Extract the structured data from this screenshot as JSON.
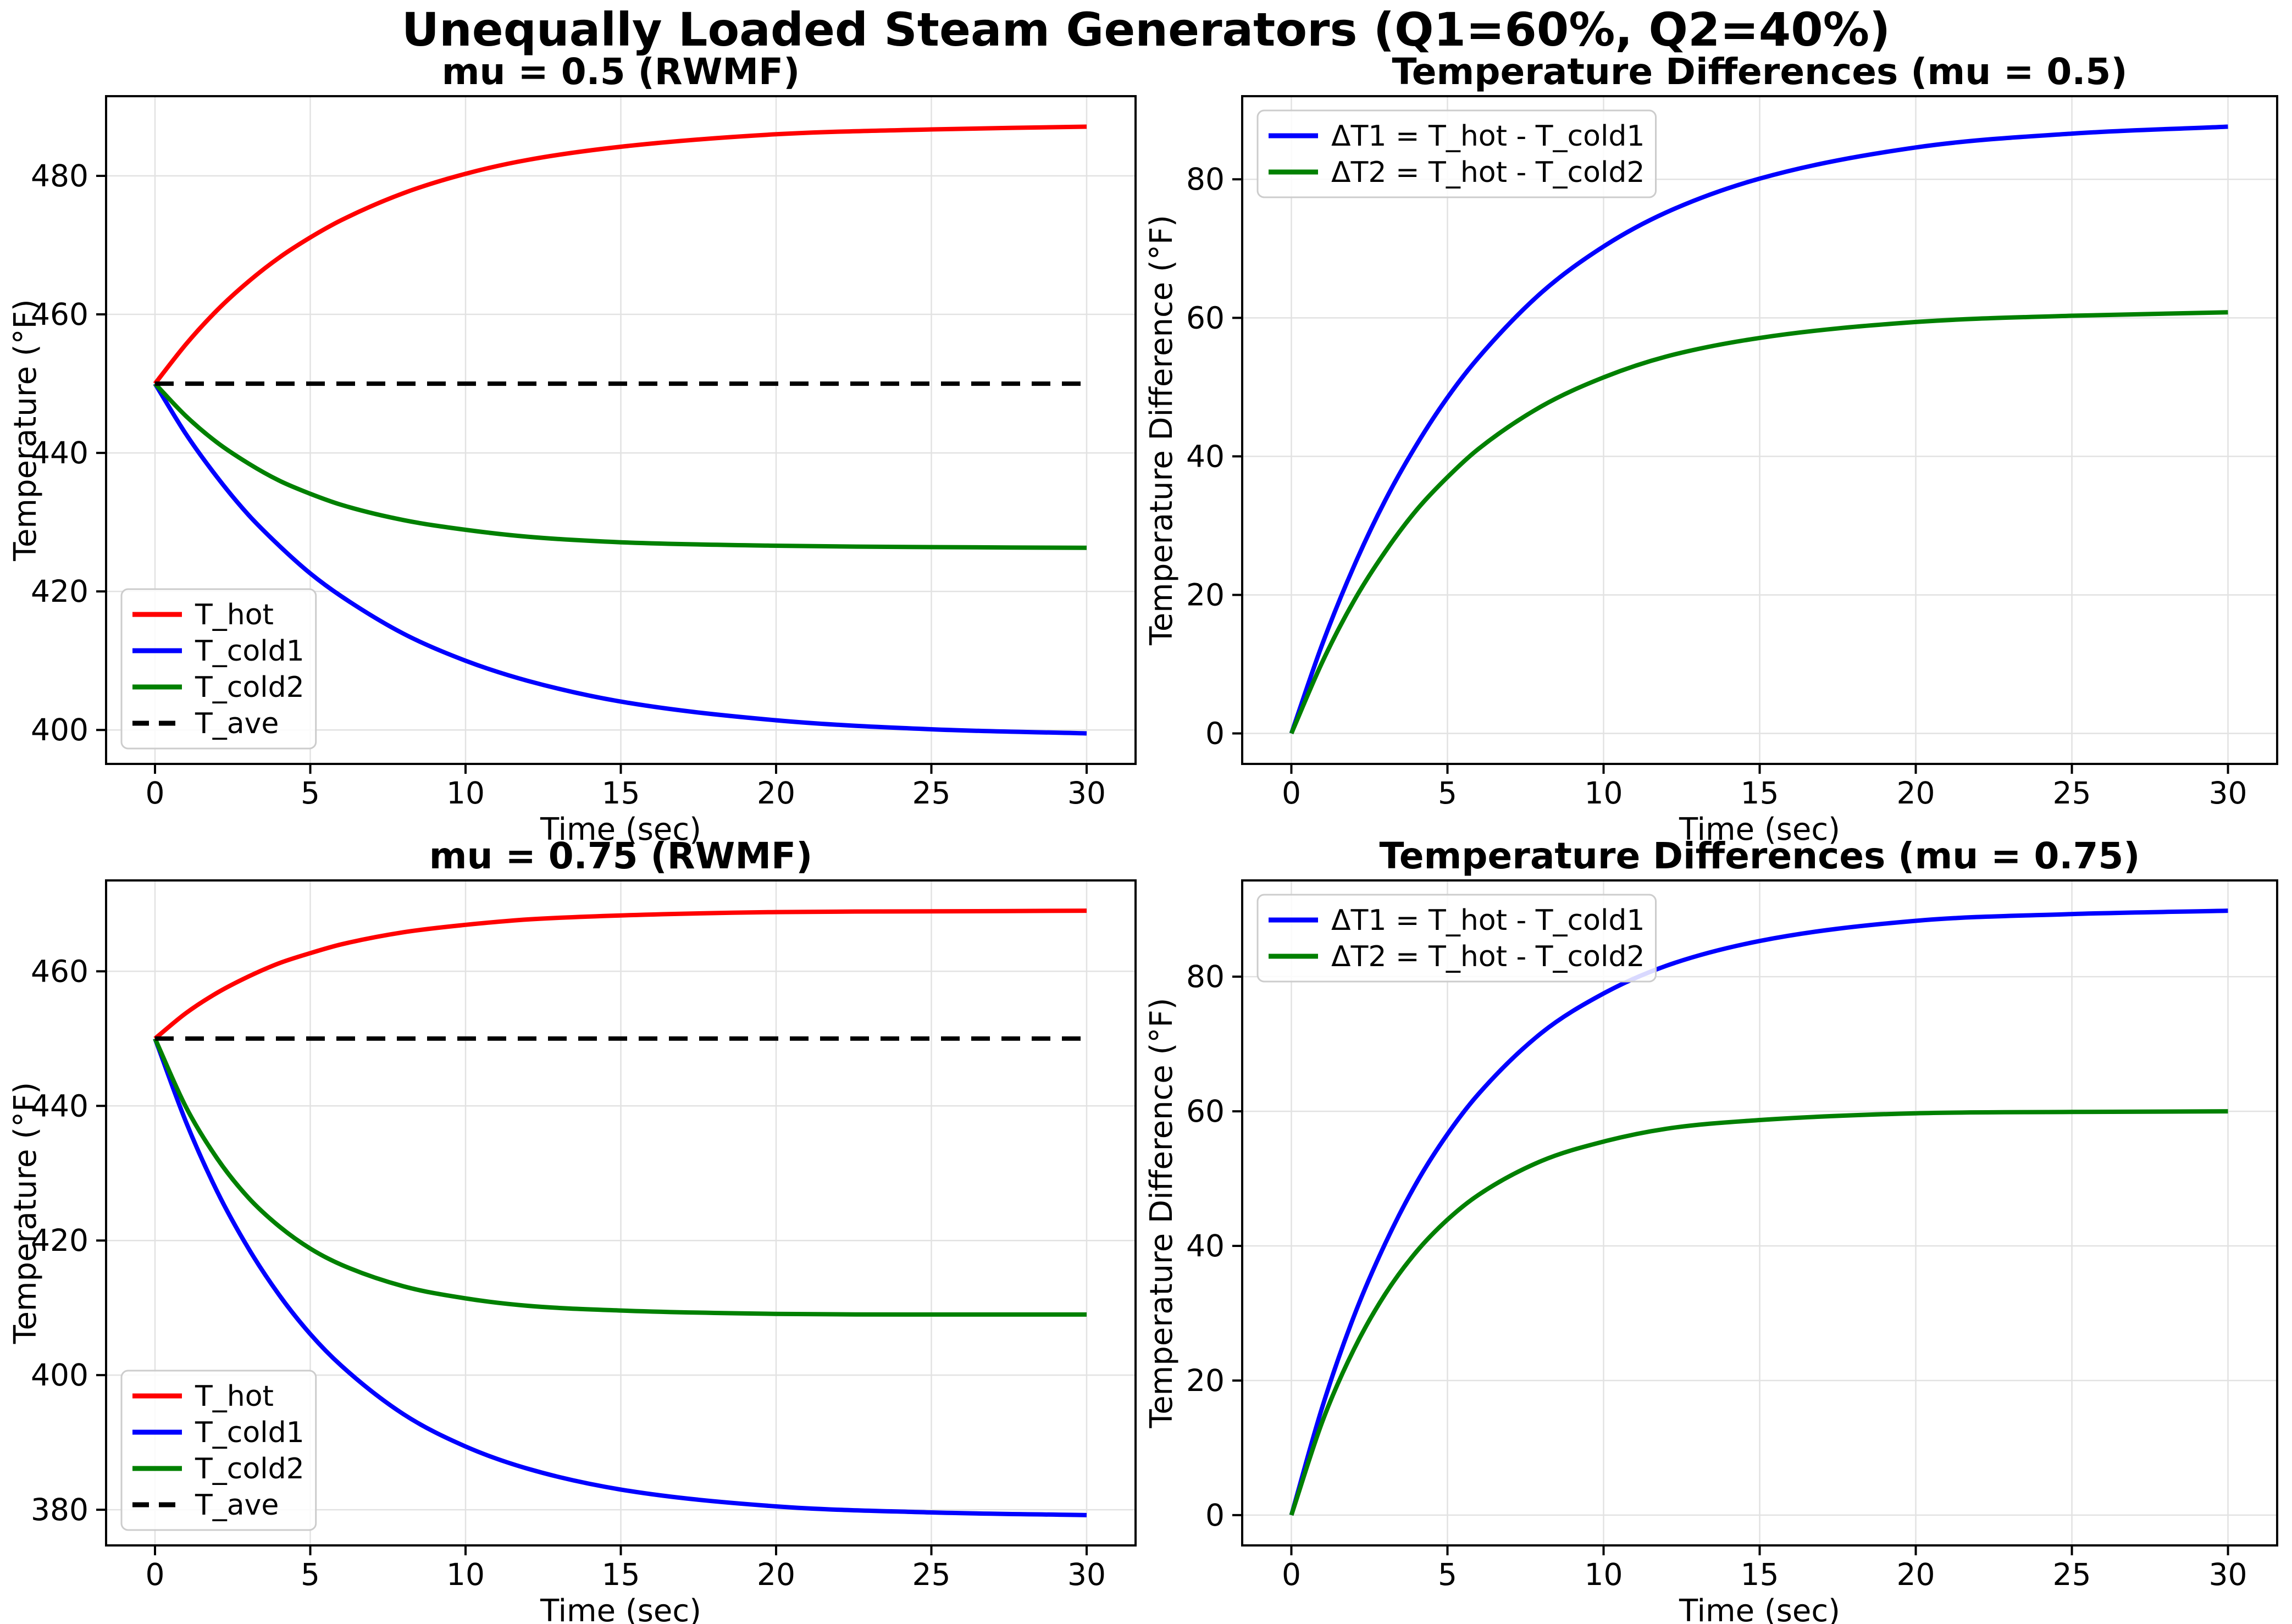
{
  "figure": {
    "suptitle": "Unequally Loaded Steam Generators (Q1=60%, Q2=40%)",
    "background": "#ffffff",
    "colors": {
      "t_hot": "#ff0000",
      "t_cold1": "#0000ff",
      "t_cold2": "#008000",
      "t_ave": "#000000",
      "grid": "#e2e2e2",
      "spine": "#000000",
      "legend_border": "#cccccc",
      "legend_fill": "rgba(255,255,255,0.85)"
    }
  },
  "chart_data": [
    {
      "id": "mu05-temps",
      "type": "line",
      "title": "mu = 0.5 (RWMF)",
      "xlabel": "Time (sec)",
      "ylabel": "Temperature (°F)",
      "xlim": [
        -1.575,
        31.575
      ],
      "ylim": [
        395.1,
        491.5
      ],
      "xticks": [
        0,
        5,
        10,
        15,
        20,
        25,
        30
      ],
      "yticks": [
        400,
        420,
        440,
        460,
        480
      ],
      "grid": true,
      "legend_position": "lower-left",
      "x": [
        0,
        1,
        2,
        3,
        4,
        5,
        6,
        8,
        10,
        12,
        15,
        20,
        25,
        30
      ],
      "series": [
        {
          "name": "T_hot",
          "color": "#ff0000",
          "style": "solid",
          "values": [
            450,
            455.7,
            460.6,
            464.7,
            468.2,
            471.1,
            473.6,
            477.5,
            480.3,
            482.3,
            484.2,
            486.0,
            486.7,
            487.1
          ]
        },
        {
          "name": "T_cold1",
          "color": "#0000ff",
          "style": "solid",
          "values": [
            450,
            442.7,
            436.5,
            431.1,
            426.6,
            422.6,
            419.3,
            413.9,
            410.0,
            407.1,
            404.1,
            401.4,
            400.1,
            399.5
          ]
        },
        {
          "name": "T_cold2",
          "color": "#008000",
          "style": "solid",
          "values": [
            450,
            445.3,
            441.5,
            438.5,
            436.0,
            434.1,
            432.5,
            430.3,
            428.9,
            427.9,
            427.1,
            426.6,
            426.4,
            426.3
          ]
        },
        {
          "name": "T_ave",
          "color": "#000000",
          "style": "dashed",
          "values": [
            450,
            450,
            450,
            450,
            450,
            450,
            450,
            450,
            450,
            450,
            450,
            450,
            450,
            450
          ]
        }
      ]
    },
    {
      "id": "mu05-diffs",
      "type": "line",
      "title": "Temperature Differences (mu = 0.5)",
      "xlabel": "Time (sec)",
      "ylabel": "Temperature Difference (°F)",
      "xlim": [
        -1.575,
        31.575
      ],
      "ylim": [
        -4.4,
        92.0
      ],
      "xticks": [
        0,
        5,
        10,
        15,
        20,
        25,
        30
      ],
      "yticks": [
        0,
        20,
        40,
        60,
        80
      ],
      "grid": true,
      "legend_position": "upper-left",
      "x": [
        0,
        1,
        2,
        3,
        4,
        5,
        6,
        8,
        10,
        12,
        15,
        20,
        25,
        30
      ],
      "series": [
        {
          "name": "ΔT1 = T_hot - T_cold1",
          "color": "#0000ff",
          "style": "solid",
          "values": [
            0,
            13.0,
            24.1,
            33.6,
            41.6,
            48.5,
            54.3,
            63.6,
            70.3,
            75.2,
            80.1,
            84.6,
            86.6,
            87.6
          ]
        },
        {
          "name": "ΔT2 = T_hot - T_cold2",
          "color": "#008000",
          "style": "solid",
          "values": [
            0,
            10.4,
            19.1,
            26.2,
            32.2,
            37.0,
            41.1,
            47.2,
            51.4,
            54.4,
            57.1,
            59.4,
            60.3,
            60.8
          ]
        }
      ]
    },
    {
      "id": "mu075-temps",
      "type": "line",
      "title": "mu = 0.75 (RWMF)",
      "xlabel": "Time (sec)",
      "ylabel": "Temperature (°F)",
      "xlim": [
        -1.575,
        31.575
      ],
      "ylim": [
        374.7,
        473.5
      ],
      "xticks": [
        0,
        5,
        10,
        15,
        20,
        25,
        30
      ],
      "yticks": [
        380,
        400,
        420,
        440,
        460
      ],
      "grid": true,
      "legend_position": "lower-left",
      "x": [
        0,
        1,
        2,
        3,
        4,
        5,
        6,
        8,
        10,
        12,
        15,
        20,
        25,
        30
      ],
      "series": [
        {
          "name": "T_hot",
          "color": "#ff0000",
          "style": "solid",
          "values": [
            450,
            453.8,
            456.8,
            459.2,
            461.2,
            462.7,
            464.0,
            465.8,
            466.9,
            467.7,
            468.3,
            468.8,
            468.9,
            469.0
          ]
        },
        {
          "name": "T_cold1",
          "color": "#0000ff",
          "style": "solid",
          "values": [
            450,
            437.6,
            427.3,
            418.9,
            411.9,
            406.1,
            401.4,
            394.2,
            389.4,
            386.1,
            383.0,
            380.5,
            379.6,
            379.2
          ]
        },
        {
          "name": "T_cold2",
          "color": "#008000",
          "style": "solid",
          "values": [
            450,
            439.8,
            432.2,
            426.4,
            422.1,
            418.8,
            416.4,
            413.2,
            411.4,
            410.3,
            409.6,
            409.1,
            409.0,
            409.0
          ]
        },
        {
          "name": "T_ave",
          "color": "#000000",
          "style": "dashed",
          "values": [
            450,
            450,
            450,
            450,
            450,
            450,
            450,
            450,
            450,
            450,
            450,
            450,
            450,
            450
          ]
        }
      ]
    },
    {
      "id": "mu075-diffs",
      "type": "line",
      "title": "Temperature Differences (mu = 0.75)",
      "xlabel": "Time (sec)",
      "ylabel": "Temperature Difference (°F)",
      "xlim": [
        -1.575,
        31.575
      ],
      "ylim": [
        -4.5,
        94.3
      ],
      "xticks": [
        0,
        5,
        10,
        15,
        20,
        25,
        30
      ],
      "yticks": [
        0,
        20,
        40,
        60,
        80
      ],
      "grid": true,
      "legend_position": "upper-left",
      "x": [
        0,
        1,
        2,
        3,
        4,
        5,
        6,
        8,
        10,
        12,
        15,
        20,
        25,
        30
      ],
      "series": [
        {
          "name": "ΔT1 = T_hot - T_cold1",
          "color": "#0000ff",
          "style": "solid",
          "values": [
            0,
            16.2,
            29.5,
            40.3,
            49.3,
            56.6,
            62.6,
            71.6,
            77.5,
            81.6,
            85.3,
            88.3,
            89.3,
            89.8
          ]
        },
        {
          "name": "ΔT2 = T_hot - T_cold2",
          "color": "#008000",
          "style": "solid",
          "values": [
            0,
            14.0,
            24.6,
            32.8,
            39.1,
            43.9,
            47.6,
            52.6,
            55.5,
            57.4,
            58.7,
            59.7,
            59.9,
            60.0
          ]
        }
      ]
    }
  ]
}
